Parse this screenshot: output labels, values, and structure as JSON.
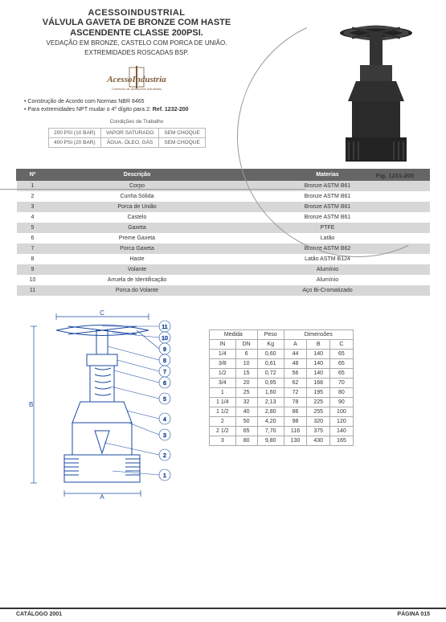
{
  "header": {
    "brand": "ACESSOINDUSTRIAL",
    "title_l1": "VÁLVULA GAVETA DE BRONZE COM HASTE",
    "title_l2": "ASCENDENTE CLASSE 200PSI.",
    "sub_l1": "VEDAÇÃO EM BRONZE, CASTELO COM PORCA DE UNIÃO.",
    "sub_l2": "EXTREMIDADES ROSCADAS BSP."
  },
  "logo_text": "ACESSOINDUSTRIA",
  "bullets": {
    "b1": "Construção de Acordo com Normas NBR 8465",
    "b2_pre": "Para extremidades NPT mudar o 4º dígito para 2: ",
    "b2_ref": "Ref. 1232-200"
  },
  "conditions": {
    "title": "Condições de Trabalho",
    "rows": [
      [
        "200 PSI (10 BAR)",
        "VAPOR SATURADO",
        "SEM CHOQUE"
      ],
      [
        "400 PSI (20 BAR)",
        "ÁGUA, ÓLEO, GÁS",
        "SEM CHOQUE"
      ]
    ]
  },
  "figure_caption": "Fig. 1231-200",
  "parts": {
    "headers": [
      "Nº",
      "Descrição",
      "Materias"
    ],
    "rows": [
      [
        "1",
        "Corpo",
        "Bronze ASTM B61"
      ],
      [
        "2",
        "Cunha Sólida",
        "Bronze ASTM B61"
      ],
      [
        "3",
        "Porca de União",
        "Bronze ASTM B61"
      ],
      [
        "4",
        "Castelo",
        "Bronze ASTM B61"
      ],
      [
        "5",
        "Gaxeta",
        "PTFE"
      ],
      [
        "6",
        "Preme Gaxeta",
        "Latão"
      ],
      [
        "7",
        "Porca Gaxeta",
        "Bronze ASTM B62"
      ],
      [
        "8",
        "Haste",
        "Latão ASTM B124"
      ],
      [
        "9",
        "Volante",
        "Alumínio"
      ],
      [
        "10",
        "Arruela de Identificação",
        "Alumínio"
      ],
      [
        "11",
        "Porca do Volante",
        "Aço Bi-Cromatizado"
      ]
    ]
  },
  "dim_labels": {
    "A": "A",
    "B": "B",
    "C": "C"
  },
  "dimensions": {
    "group_headers": [
      "Medida",
      "Peso",
      "Dimensões"
    ],
    "sub_headers": [
      "IN",
      "DN",
      "Kg",
      "A",
      "B",
      "C"
    ],
    "rows": [
      [
        "1/4",
        "6",
        "0,60",
        "44",
        "140",
        "65"
      ],
      [
        "3/8",
        "10",
        "0,61",
        "48",
        "140",
        "65"
      ],
      [
        "1/2",
        "15",
        "0,72",
        "56",
        "140",
        "65"
      ],
      [
        "3/4",
        "20",
        "0,95",
        "62",
        "168",
        "70"
      ],
      [
        "1",
        "25",
        "1,60",
        "72",
        "195",
        "80"
      ],
      [
        "1 1/4",
        "32",
        "2,13",
        "78",
        "225",
        "90"
      ],
      [
        "1 1/2",
        "40",
        "2,80",
        "86",
        "255",
        "100"
      ],
      [
        "2",
        "50",
        "4,20",
        "98",
        "320",
        "120"
      ],
      [
        "2 1/2",
        "65",
        "7,70",
        "116",
        "375",
        "140"
      ],
      [
        "3",
        "80",
        "9,80",
        "130",
        "430",
        "165"
      ]
    ]
  },
  "footer": {
    "left": "CATÁLOGO  2001",
    "right": "PÁGINA  015"
  },
  "colors": {
    "table_header_bg": "#666666",
    "row_alt_bg": "#d7d7d7",
    "border": "#aaaaaa",
    "text": "#333333"
  }
}
